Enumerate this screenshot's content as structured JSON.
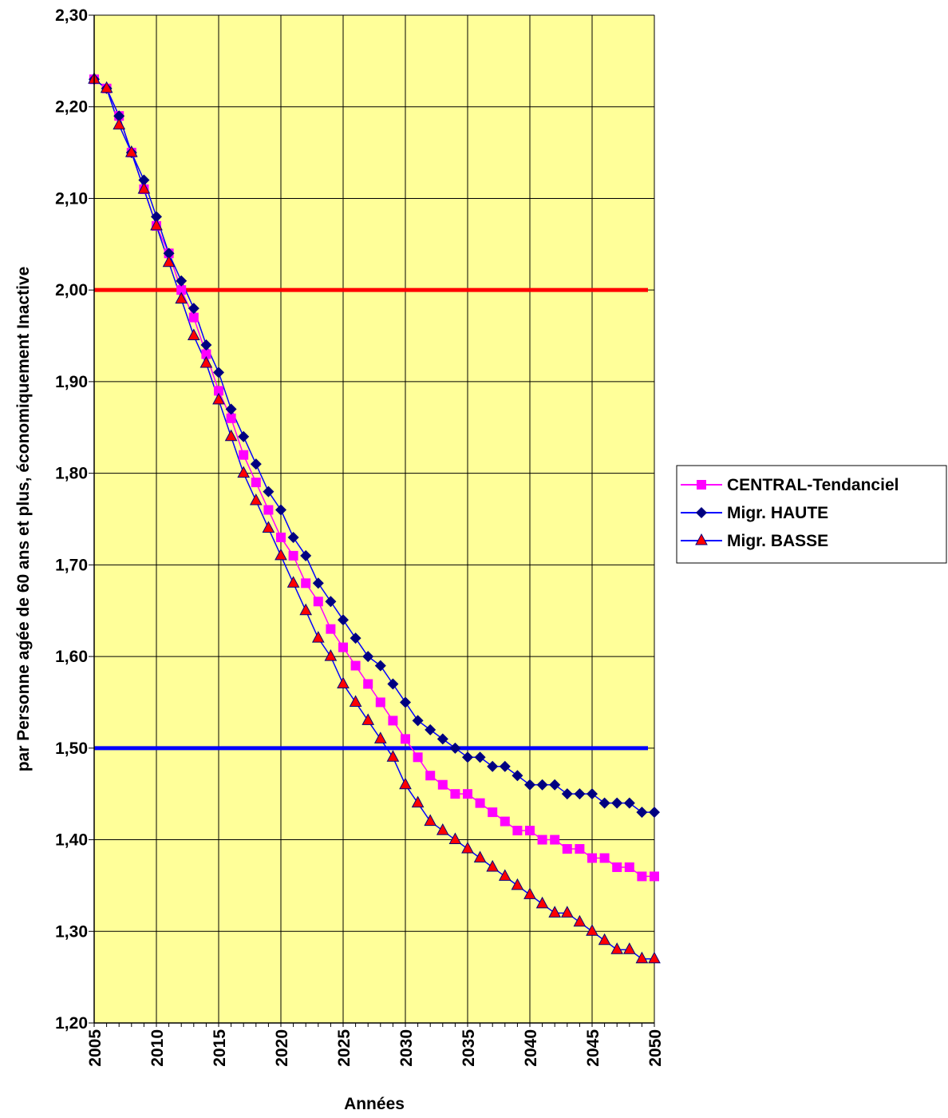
{
  "chart_data": {
    "type": "line",
    "title": "",
    "xlabel": "Années",
    "ylabel": "par Personne agée de 60 ans et plus, économiquement Inactive",
    "xlim": [
      2005,
      2050
    ],
    "ylim": [
      1.2,
      2.3
    ],
    "x_ticks": [
      2005,
      2010,
      2015,
      2020,
      2025,
      2030,
      2035,
      2040,
      2045,
      2050
    ],
    "x_tick_labels": [
      "2005",
      "2010",
      "2015",
      "2020",
      "2025",
      "2030",
      "2035",
      "2040",
      "2045",
      "2050"
    ],
    "y_ticks": [
      1.2,
      1.3,
      1.4,
      1.5,
      1.6,
      1.7,
      1.8,
      1.9,
      2.0,
      2.1,
      2.2,
      2.3
    ],
    "y_tick_labels": [
      "1,20",
      "1,30",
      "1,40",
      "1,50",
      "1,60",
      "1,70",
      "1,80",
      "1,90",
      "2,00",
      "2,10",
      "2,20",
      "2,30"
    ],
    "grid": true,
    "plot_background": "#FFFF99",
    "grid_color": "#000000",
    "legend_position": "right",
    "x": [
      2005,
      2006,
      2007,
      2008,
      2009,
      2010,
      2011,
      2012,
      2013,
      2014,
      2015,
      2016,
      2017,
      2018,
      2019,
      2020,
      2021,
      2022,
      2023,
      2024,
      2025,
      2026,
      2027,
      2028,
      2029,
      2030,
      2031,
      2032,
      2033,
      2034,
      2035,
      2036,
      2037,
      2038,
      2039,
      2040,
      2041,
      2042,
      2043,
      2044,
      2045,
      2046,
      2047,
      2048,
      2049,
      2050
    ],
    "series": [
      {
        "name": "CENTRAL-Tendanciel",
        "color": "#FF00FF",
        "line_color": "#FF00FF",
        "marker": "square",
        "values": [
          2.23,
          2.22,
          2.19,
          2.15,
          2.11,
          2.07,
          2.04,
          2.0,
          1.97,
          1.93,
          1.89,
          1.86,
          1.82,
          1.79,
          1.76,
          1.73,
          1.71,
          1.68,
          1.66,
          1.63,
          1.61,
          1.59,
          1.57,
          1.55,
          1.53,
          1.51,
          1.49,
          1.47,
          1.46,
          1.45,
          1.45,
          1.44,
          1.43,
          1.42,
          1.41,
          1.41,
          1.4,
          1.4,
          1.39,
          1.39,
          1.38,
          1.38,
          1.37,
          1.37,
          1.36,
          1.36
        ]
      },
      {
        "name": "Migr. HAUTE",
        "color": "#000080",
        "line_color": "#0000FF",
        "marker": "diamond",
        "values": [
          2.23,
          2.22,
          2.19,
          2.15,
          2.12,
          2.08,
          2.04,
          2.01,
          1.98,
          1.94,
          1.91,
          1.87,
          1.84,
          1.81,
          1.78,
          1.76,
          1.73,
          1.71,
          1.68,
          1.66,
          1.64,
          1.62,
          1.6,
          1.59,
          1.57,
          1.55,
          1.53,
          1.52,
          1.51,
          1.5,
          1.49,
          1.49,
          1.48,
          1.48,
          1.47,
          1.46,
          1.46,
          1.46,
          1.45,
          1.45,
          1.45,
          1.44,
          1.44,
          1.44,
          1.43,
          1.43
        ]
      },
      {
        "name": "Migr. BASSE",
        "color": "#FF0000",
        "line_color": "#0000FF",
        "marker": "triangle",
        "values": [
          2.23,
          2.22,
          2.18,
          2.15,
          2.11,
          2.07,
          2.03,
          1.99,
          1.95,
          1.92,
          1.88,
          1.84,
          1.8,
          1.77,
          1.74,
          1.71,
          1.68,
          1.65,
          1.62,
          1.6,
          1.57,
          1.55,
          1.53,
          1.51,
          1.49,
          1.46,
          1.44,
          1.42,
          1.41,
          1.4,
          1.39,
          1.38,
          1.37,
          1.36,
          1.35,
          1.34,
          1.33,
          1.32,
          1.32,
          1.31,
          1.3,
          1.29,
          1.28,
          1.28,
          1.27,
          1.27
        ]
      }
    ],
    "reference_lines": [
      {
        "y": 2.0,
        "color": "#FF0000"
      },
      {
        "y": 1.5,
        "color": "#0000FF"
      }
    ]
  }
}
